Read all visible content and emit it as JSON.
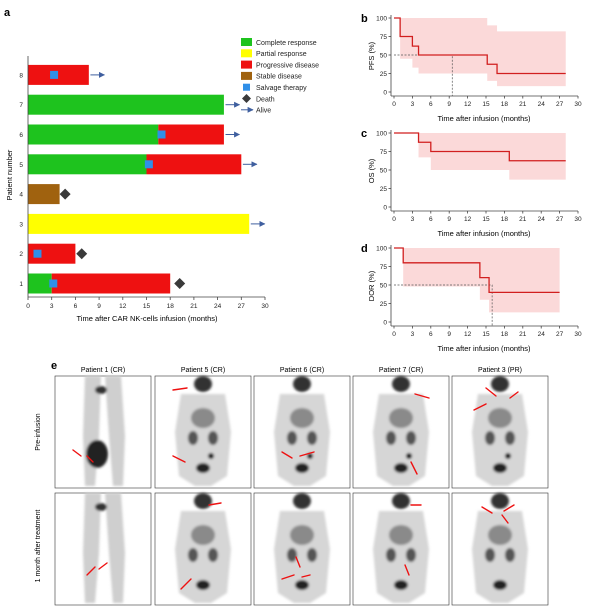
{
  "panels": {
    "a": "a",
    "b": "b",
    "c": "c",
    "d": "d",
    "e": "e"
  },
  "chart_data": [
    {
      "panel": "a",
      "type": "bar",
      "orientation": "horizontal-swimmer",
      "xlabel": "Time after CAR NK-cells infusion (months)",
      "ylabel": "Patient number",
      "xlim": [
        0,
        30
      ],
      "xticks": [
        0,
        3,
        6,
        9,
        12,
        15,
        18,
        21,
        24,
        27,
        30
      ],
      "patients": [
        "1",
        "2",
        "3",
        "4",
        "5",
        "6",
        "7",
        "8"
      ],
      "colors": {
        "Complete response": "#1ec31e",
        "Partial response": "#ffff00",
        "Progressive disease": "#ee1111",
        "Stable disease": "#a0620f",
        "Salvage therapy": "#2f8fe8",
        "Death": "#3a3a3a",
        "Alive": "#3f5f9f"
      },
      "legend": [
        {
          "label": "Complete response",
          "kind": "box"
        },
        {
          "label": "Partial response",
          "kind": "box"
        },
        {
          "label": "Progressive disease",
          "kind": "box"
        },
        {
          "label": "Stable disease",
          "kind": "box"
        },
        {
          "label": "Salvage therapy",
          "kind": "square"
        },
        {
          "label": "Death",
          "kind": "diamond"
        },
        {
          "label": "Alive",
          "kind": "arrow"
        }
      ],
      "segments": [
        {
          "patient": "1",
          "status": "Complete response",
          "start": 0,
          "end": 3
        },
        {
          "patient": "1",
          "status": "Progressive disease",
          "start": 3,
          "end": 18
        },
        {
          "patient": "2",
          "status": "Progressive disease",
          "start": 0,
          "end": 6
        },
        {
          "patient": "3",
          "status": "Partial response",
          "start": 0,
          "end": 28
        },
        {
          "patient": "4",
          "status": "Stable disease",
          "start": 0,
          "end": 4
        },
        {
          "patient": "5",
          "status": "Complete response",
          "start": 0,
          "end": 15
        },
        {
          "patient": "5",
          "status": "Progressive disease",
          "start": 15,
          "end": 27
        },
        {
          "patient": "6",
          "status": "Complete response",
          "start": 0,
          "end": 16.5
        },
        {
          "patient": "6",
          "status": "Progressive disease",
          "start": 16.5,
          "end": 24.8
        },
        {
          "patient": "7",
          "status": "Complete response",
          "start": 0,
          "end": 24.8
        },
        {
          "patient": "8",
          "status": "Progressive disease",
          "start": 0,
          "end": 7.7
        }
      ],
      "salvage": [
        {
          "patient": "1",
          "time": 3.2
        },
        {
          "patient": "2",
          "time": 1.2
        },
        {
          "patient": "5",
          "time": 15.3
        },
        {
          "patient": "6",
          "time": 16.9
        },
        {
          "patient": "8",
          "time": 3.3
        }
      ],
      "deaths": [
        {
          "patient": "1",
          "time": 19.2
        },
        {
          "patient": "2",
          "time": 6.8
        },
        {
          "patient": "4",
          "time": 4.7
        }
      ],
      "alive": [
        {
          "patient": "3",
          "time": 28.2
        },
        {
          "patient": "5",
          "time": 27.2
        },
        {
          "patient": "6",
          "time": 25
        },
        {
          "patient": "7",
          "time": 25
        },
        {
          "patient": "8",
          "time": 7.9
        }
      ]
    },
    {
      "panel": "b",
      "type": "line",
      "style": "kaplan-meier",
      "xlabel": "Time after infusion (months)",
      "ylabel": "PFS (%)",
      "xlim": [
        0,
        30
      ],
      "ylim": [
        0,
        100
      ],
      "xticks": [
        0,
        3,
        6,
        9,
        12,
        15,
        18,
        21,
        24,
        27,
        30
      ],
      "yticks": [
        0,
        25,
        50,
        75,
        100
      ],
      "steps": [
        [
          0,
          100
        ],
        [
          1,
          75
        ],
        [
          3,
          62
        ],
        [
          4,
          50
        ],
        [
          15.2,
          37.5
        ],
        [
          16.8,
          25
        ],
        [
          28,
          25
        ]
      ],
      "ci": [
        [
          0,
          100,
          100
        ],
        [
          1,
          45,
          100
        ],
        [
          3,
          33,
          100
        ],
        [
          4,
          25,
          100
        ],
        [
          15.2,
          15,
          90
        ],
        [
          16.8,
          8,
          82
        ],
        [
          28,
          8,
          82
        ]
      ],
      "median": 9.5
    },
    {
      "panel": "c",
      "type": "line",
      "style": "kaplan-meier",
      "xlabel": "Time after infusion (months)",
      "ylabel": "OS (%)",
      "xlim": [
        0,
        30
      ],
      "ylim": [
        0,
        100
      ],
      "xticks": [
        0,
        3,
        6,
        9,
        12,
        15,
        18,
        21,
        24,
        27,
        30
      ],
      "yticks": [
        0,
        25,
        50,
        75,
        100
      ],
      "steps": [
        [
          0,
          100
        ],
        [
          4,
          87.5
        ],
        [
          6,
          75
        ],
        [
          18.8,
          62.5
        ],
        [
          28,
          62.5
        ]
      ],
      "ci": [
        [
          0,
          100,
          100
        ],
        [
          4,
          67,
          100
        ],
        [
          6,
          50,
          100
        ],
        [
          18.8,
          37,
          100
        ],
        [
          28,
          37,
          100
        ]
      ]
    },
    {
      "panel": "d",
      "type": "line",
      "style": "kaplan-meier",
      "xlabel": "Time after infusion (months)",
      "ylabel": "DOR (%)",
      "xlim": [
        0,
        30
      ],
      "ylim": [
        0,
        100
      ],
      "xticks": [
        0,
        3,
        6,
        9,
        12,
        15,
        18,
        21,
        24,
        27,
        30
      ],
      "yticks": [
        0,
        25,
        50,
        75,
        100
      ],
      "steps": [
        [
          0,
          100
        ],
        [
          1.5,
          80
        ],
        [
          14,
          60
        ],
        [
          15.5,
          40
        ],
        [
          27,
          40
        ]
      ],
      "ci": [
        [
          0,
          100,
          100
        ],
        [
          1.5,
          48,
          100
        ],
        [
          14,
          30,
          100
        ],
        [
          15.5,
          13,
          100
        ],
        [
          27,
          13,
          100
        ]
      ],
      "median": 16
    }
  ],
  "pet": {
    "col_titles": [
      "Patient 1 (CR)",
      "Patient 5 (CR)",
      "Patient 6 (CR)",
      "Patient 7 (CR)",
      "Patient 3 (PR)"
    ],
    "row_labels": [
      "Pre-infusion",
      "1 month after treatment"
    ]
  }
}
